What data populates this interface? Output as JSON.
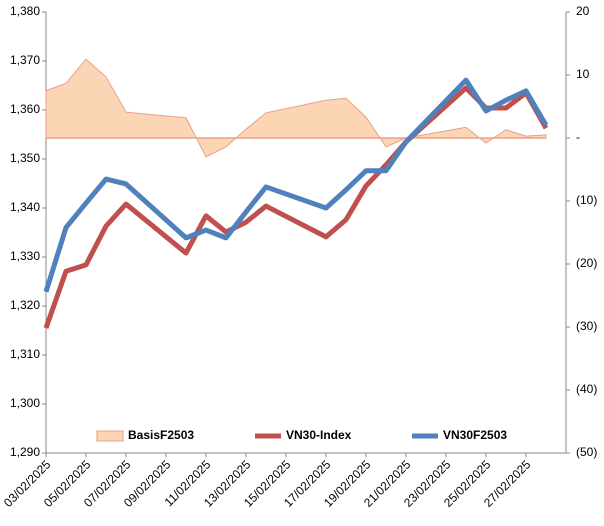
{
  "chart_data": {
    "type": "line",
    "x": [
      "03/02/2025",
      "04/02/2025",
      "05/02/2025",
      "06/02/2025",
      "07/02/2025",
      "10/02/2025",
      "11/02/2025",
      "12/02/2025",
      "13/02/2025",
      "14/02/2025",
      "17/02/2025",
      "18/02/2025",
      "19/02/2025",
      "20/02/2025",
      "21/02/2025",
      "24/02/2025",
      "25/02/2025",
      "26/02/2025",
      "27/02/2025",
      "28/02/2025"
    ],
    "series": [
      {
        "name": "BasisF2503",
        "kind": "area",
        "axis": "y2",
        "color": "#fcd5b5",
        "edge_color": "#e8a08a",
        "values": [
          7.5,
          8.7,
          12.5,
          9.7,
          4.1,
          3.2,
          -3,
          -1.4,
          1.4,
          4,
          6,
          6.3,
          3.3,
          -1.4,
          0,
          1.7,
          -0.8,
          1.3,
          0.3,
          0.5
        ]
      },
      {
        "name": "VN30-Index",
        "kind": "line",
        "color": "#c0504d",
        "values": [
          1315.5,
          1327.1,
          1328.4,
          1336.3,
          1340.8,
          1330.8,
          1338.4,
          1335.1,
          1337.1,
          1340.4,
          1334.1,
          1337.6,
          1344.5,
          1348.8,
          1353.5,
          1364.5,
          1360.4,
          1360.4,
          1363.5,
          1356.3
        ]
      },
      {
        "name": "VN30F2503",
        "kind": "line",
        "color": "#4f81bd",
        "values": [
          1322.9,
          1336,
          1341,
          1345.9,
          1344.9,
          1333.9,
          1335.5,
          1333.9,
          1339.2,
          1344.3,
          1340,
          1343.7,
          1347.6,
          1347.6,
          1353.5,
          1366.1,
          1359.8,
          1362,
          1363.9,
          1356.9
        ]
      }
    ],
    "xlim": [
      "03/02/2025",
      "01/03/2025"
    ],
    "xticks": [
      "03/02/2025",
      "05/02/2025",
      "07/02/2025",
      "09/02/2025",
      "11/02/2025",
      "13/02/2025",
      "15/02/2025",
      "17/02/2025",
      "19/02/2025",
      "21/02/2025",
      "23/02/2025",
      "25/02/2025",
      "27/02/2025"
    ],
    "ylim": [
      1290,
      1380
    ],
    "yticks": [
      {
        "value": 1290,
        "label": "1,290"
      },
      {
        "value": 1300,
        "label": "1,300"
      },
      {
        "value": 1310,
        "label": "1,310"
      },
      {
        "value": 1320,
        "label": "1,320"
      },
      {
        "value": 1330,
        "label": "1,330"
      },
      {
        "value": 1340,
        "label": "1,340"
      },
      {
        "value": 1350,
        "label": "1,350"
      },
      {
        "value": 1360,
        "label": "1,360"
      },
      {
        "value": 1370,
        "label": "1,370"
      },
      {
        "value": 1380,
        "label": "1,380"
      }
    ],
    "y2lim": [
      -50,
      20
    ],
    "y2ticks": [
      {
        "value": -50,
        "label": "(50)"
      },
      {
        "value": -40,
        "label": "(40)"
      },
      {
        "value": -30,
        "label": "(30)"
      },
      {
        "value": -20,
        "label": "(20)"
      },
      {
        "value": -10,
        "label": "(10)"
      },
      {
        "value": 0,
        "label": "-"
      },
      10,
      20
    ],
    "legend": "bottom"
  }
}
